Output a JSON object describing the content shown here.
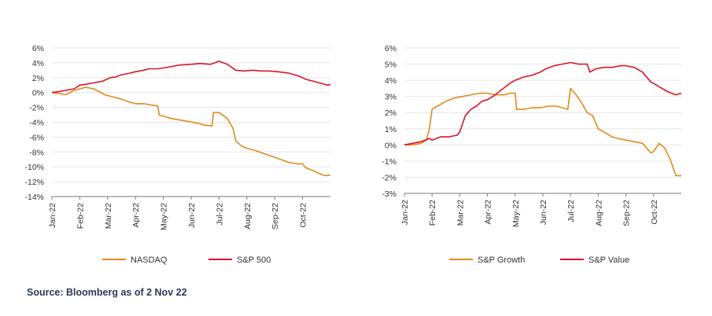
{
  "source_note": "Source: Bloomberg as of 2 Nov 22",
  "colors": {
    "orange": "#e08a1e",
    "red": "#d9142b",
    "grid": "#e6e6e6",
    "axis": "#7a7a7a"
  },
  "chart_data": [
    {
      "type": "line",
      "title": "",
      "xlabel": "",
      "ylabel": "",
      "y_tick_labels": [
        "6%",
        "4%",
        "2%",
        "0%",
        "-2%",
        "-4%",
        "-6%",
        "-8%",
        "-10%",
        "-12%",
        "-14%"
      ],
      "y_ticks": [
        6,
        4,
        2,
        0,
        -2,
        -4,
        -6,
        -8,
        -10,
        -12,
        -14
      ],
      "ylim": [
        -14,
        6
      ],
      "categories": [
        "Jan-22",
        "Feb-22",
        "Mar-22",
        "Apr-22",
        "May-22",
        "Jun-22",
        "Jul-22",
        "Aug-22",
        "Sep-22",
        "Oct-22"
      ],
      "xlim": [
        0,
        10
      ],
      "legend": "bottom",
      "series": [
        {
          "name": "NASDAQ",
          "color": "#e08a1e",
          "x": [
            0,
            0.2,
            0.5,
            0.8,
            1.0,
            1.2,
            1.5,
            1.9,
            2.2,
            2.5,
            2.8,
            3.0,
            3.3,
            3.6,
            3.8,
            3.85,
            4.0,
            4.3,
            4.6,
            4.9,
            5.2,
            5.5,
            5.75,
            5.8,
            6.0,
            6.3,
            6.5,
            6.6,
            6.8,
            7.0,
            7.3,
            7.6,
            7.9,
            8.2,
            8.5,
            8.8,
            9.0,
            9.1,
            9.3,
            9.6,
            9.8,
            10.0
          ],
          "values": [
            0,
            -0.1,
            -0.3,
            0.3,
            0.5,
            0.7,
            0.5,
            -0.3,
            -0.6,
            -0.9,
            -1.3,
            -1.5,
            -1.5,
            -1.7,
            -1.8,
            -3.0,
            -3.2,
            -3.5,
            -3.7,
            -3.9,
            -4.1,
            -4.4,
            -4.5,
            -2.7,
            -2.7,
            -3.5,
            -4.8,
            -6.5,
            -7.2,
            -7.5,
            -7.8,
            -8.2,
            -8.6,
            -9.0,
            -9.4,
            -9.6,
            -9.6,
            -10.1,
            -10.4,
            -10.9,
            -11.2,
            -11.1
          ]
        },
        {
          "name": "S&P 500",
          "color": "#d9142b",
          "x": [
            0,
            0.2,
            0.5,
            0.8,
            1.0,
            1.2,
            1.5,
            1.8,
            2.1,
            2.3,
            2.5,
            2.8,
            3.0,
            3.3,
            3.5,
            3.8,
            4.0,
            4.3,
            4.6,
            5.0,
            5.3,
            5.7,
            6.0,
            6.3,
            6.6,
            6.9,
            7.2,
            7.5,
            7.8,
            8.1,
            8.5,
            8.8,
            9.0,
            9.1,
            9.4,
            9.7,
            9.9,
            10.0
          ],
          "values": [
            0,
            0.1,
            0.3,
            0.5,
            1.0,
            1.1,
            1.3,
            1.5,
            2.0,
            2.1,
            2.4,
            2.6,
            2.8,
            3.0,
            3.2,
            3.2,
            3.3,
            3.5,
            3.7,
            3.8,
            3.9,
            3.8,
            4.2,
            3.8,
            3.0,
            2.9,
            3.0,
            2.9,
            2.9,
            2.8,
            2.6,
            2.3,
            2.0,
            1.8,
            1.5,
            1.2,
            1.0,
            1.1
          ]
        }
      ]
    },
    {
      "type": "line",
      "title": "",
      "xlabel": "",
      "ylabel": "",
      "y_tick_labels": [
        "6%",
        "5%",
        "4%",
        "3%",
        "2%",
        "1%",
        "0%",
        "-1%",
        "-2%",
        "-3%"
      ],
      "y_ticks": [
        6,
        5,
        4,
        3,
        2,
        1,
        0,
        -1,
        -2,
        -3
      ],
      "ylim": [
        -3,
        6
      ],
      "categories": [
        "Jan-22",
        "Feb-22",
        "Mar-22",
        "Apr-22",
        "May-22",
        "Jun-22",
        "Jul-22",
        "Aug-22",
        "Sep-22",
        "Oct-22"
      ],
      "xlim": [
        0,
        10
      ],
      "legend": "bottom",
      "series": [
        {
          "name": "S&P Growth",
          "color": "#e08a1e",
          "x": [
            0,
            0.3,
            0.6,
            0.8,
            0.9,
            1.0,
            1.2,
            1.5,
            1.8,
            2.1,
            2.4,
            2.7,
            3.0,
            3.3,
            3.6,
            3.8,
            4.0,
            4.05,
            4.3,
            4.6,
            4.9,
            5.2,
            5.5,
            5.9,
            6.0,
            6.2,
            6.4,
            6.6,
            6.8,
            7.0,
            7.3,
            7.5,
            7.7,
            8.0,
            8.3,
            8.6,
            8.9,
            9.0,
            9.2,
            9.4,
            9.6,
            9.8,
            10.0
          ],
          "values": [
            0,
            0,
            0.1,
            0.3,
            1.0,
            2.2,
            2.4,
            2.7,
            2.9,
            3.0,
            3.1,
            3.2,
            3.2,
            3.1,
            3.1,
            3.2,
            3.2,
            2.2,
            2.2,
            2.3,
            2.3,
            2.4,
            2.4,
            2.2,
            3.5,
            3.1,
            2.6,
            2.0,
            1.8,
            1.0,
            0.7,
            0.5,
            0.4,
            0.3,
            0.2,
            0.1,
            -0.5,
            -0.4,
            0.1,
            -0.2,
            -0.9,
            -1.9,
            -1.9
          ]
        },
        {
          "name": "S&P Value",
          "color": "#d9142b",
          "x": [
            0,
            0.3,
            0.6,
            0.9,
            1.0,
            1.3,
            1.6,
            1.9,
            2.0,
            2.2,
            2.4,
            2.6,
            2.8,
            3.0,
            3.2,
            3.5,
            3.8,
            4.0,
            4.3,
            4.6,
            4.9,
            5.1,
            5.4,
            5.7,
            6.0,
            6.3,
            6.6,
            6.7,
            6.9,
            7.2,
            7.5,
            7.8,
            8.0,
            8.3,
            8.6,
            8.9,
            9.0,
            9.2,
            9.5,
            9.8,
            10.0
          ],
          "values": [
            0,
            0.1,
            0.2,
            0.4,
            0.3,
            0.5,
            0.5,
            0.6,
            0.8,
            1.8,
            2.2,
            2.4,
            2.7,
            2.8,
            3.0,
            3.4,
            3.8,
            4.0,
            4.2,
            4.3,
            4.5,
            4.7,
            4.9,
            5.0,
            5.1,
            5.0,
            5.0,
            4.5,
            4.7,
            4.8,
            4.8,
            4.9,
            4.9,
            4.8,
            4.5,
            3.9,
            3.8,
            3.6,
            3.3,
            3.1,
            3.2
          ]
        }
      ]
    }
  ]
}
